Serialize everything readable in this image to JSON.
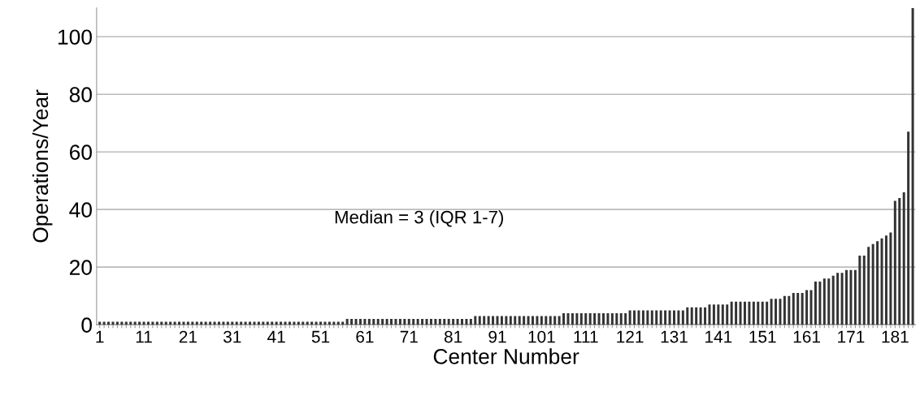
{
  "chart_data": {
    "type": "bar",
    "xlabel": "Center Number",
    "ylabel": "Operations/Year",
    "categories": [
      "1",
      null,
      null,
      null,
      null,
      null,
      null,
      null,
      null,
      null,
      "11",
      null,
      null,
      null,
      null,
      null,
      null,
      null,
      null,
      null,
      "21",
      null,
      null,
      null,
      null,
      null,
      null,
      null,
      null,
      null,
      "31",
      null,
      null,
      null,
      null,
      null,
      null,
      null,
      null,
      null,
      "41",
      null,
      null,
      null,
      null,
      null,
      null,
      null,
      null,
      null,
      "51",
      null,
      null,
      null,
      null,
      null,
      null,
      null,
      null,
      null,
      "61",
      null,
      null,
      null,
      null,
      null,
      null,
      null,
      null,
      null,
      "71",
      null,
      null,
      null,
      null,
      null,
      null,
      null,
      null,
      null,
      "81",
      null,
      null,
      null,
      null,
      null,
      null,
      null,
      null,
      null,
      "91",
      null,
      null,
      null,
      null,
      null,
      null,
      null,
      null,
      null,
      "101",
      null,
      null,
      null,
      null,
      null,
      null,
      null,
      null,
      null,
      "111",
      null,
      null,
      null,
      null,
      null,
      null,
      null,
      null,
      null,
      "121",
      null,
      null,
      null,
      null,
      null,
      null,
      null,
      null,
      null,
      "131",
      null,
      null,
      null,
      null,
      null,
      null,
      null,
      null,
      null,
      "141",
      null,
      null,
      null,
      null,
      null,
      null,
      null,
      null,
      null,
      "151",
      null,
      null,
      null,
      null,
      null,
      null,
      null,
      null,
      null,
      "161",
      null,
      null,
      null,
      null,
      null,
      null,
      null,
      null,
      null,
      "171",
      null,
      null,
      null,
      null,
      null,
      null,
      null,
      null,
      null,
      "181",
      null,
      null,
      null,
      null
    ],
    "values": [
      1,
      1,
      1,
      1,
      1,
      1,
      1,
      1,
      1,
      1,
      1,
      1,
      1,
      1,
      1,
      1,
      1,
      1,
      1,
      1,
      1,
      1,
      1,
      1,
      1,
      1,
      1,
      1,
      1,
      1,
      1,
      1,
      1,
      1,
      1,
      1,
      1,
      1,
      1,
      1,
      1,
      1,
      1,
      1,
      1,
      1,
      1,
      1,
      1,
      1,
      1,
      1,
      1,
      1,
      1,
      1,
      2,
      2,
      2,
      2,
      2,
      2,
      2,
      2,
      2,
      2,
      2,
      2,
      2,
      2,
      2,
      2,
      2,
      2,
      2,
      2,
      2,
      2,
      2,
      2,
      2,
      2,
      2,
      2,
      2,
      3,
      3,
      3,
      3,
      3,
      3,
      3,
      3,
      3,
      3,
      3,
      3,
      3,
      3,
      3,
      3,
      3,
      3,
      3,
      3,
      4,
      4,
      4,
      4,
      4,
      4,
      4,
      4,
      4,
      4,
      4,
      4,
      4,
      4,
      4,
      5,
      5,
      5,
      5,
      5,
      5,
      5,
      5,
      5,
      5,
      5,
      5,
      5,
      6,
      6,
      6,
      6,
      6,
      7,
      7,
      7,
      7,
      7,
      8,
      8,
      8,
      8,
      8,
      8,
      8,
      8,
      8,
      9,
      9,
      9,
      10,
      10,
      11,
      11,
      11,
      12,
      12,
      15,
      15,
      16,
      16,
      17,
      18,
      18,
      19,
      19,
      19,
      24,
      24,
      27,
      28,
      29,
      30,
      31,
      32,
      43,
      44,
      46,
      67,
      110
    ],
    "color": "#333333",
    "ylim": [
      0,
      110
    ],
    "yticks": [
      0,
      20,
      40,
      60,
      80,
      100
    ],
    "grid": "y",
    "annotations": [
      {
        "text": "Median = 3 (IQR 1-7)"
      }
    ]
  }
}
